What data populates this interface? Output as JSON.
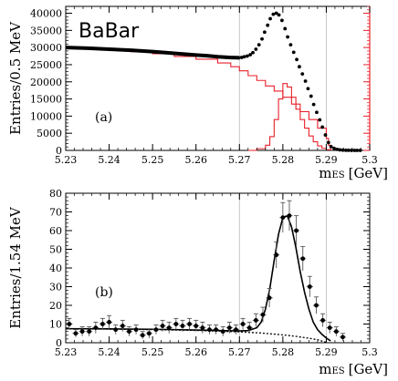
{
  "chart_data": [
    {
      "type": "scatter",
      "panel_label": "(a)",
      "experiment_label": "BaBar",
      "ylabel": "Entries/0.5 MeV",
      "xlabel": "m",
      "xlabel_subscript": "ES",
      "xlabel_unit": "[GeV]",
      "xlim": [
        5.23,
        5.3
      ],
      "ylim": [
        0,
        42000
      ],
      "xticks": [
        "5.23",
        "5.24",
        "5.25",
        "5.26",
        "5.27",
        "5.28",
        "5.29",
        "5.3"
      ],
      "yticks": [
        "0",
        "5000",
        "10000",
        "15000",
        "20000",
        "25000",
        "30000",
        "35000",
        "40000"
      ],
      "reference_lines_x": [
        5.27,
        5.29
      ],
      "colors": {
        "data": "#000000",
        "histograms": "#e8202a",
        "reference_lines": "#bbbbbb"
      },
      "series": [
        {
          "kind": "points",
          "x": [
            5.2698,
            5.2705,
            5.2711,
            5.2718,
            5.2725,
            5.2731,
            5.2738,
            5.2745,
            5.2752,
            5.2758,
            5.2765,
            5.2771,
            5.2778,
            5.2785,
            5.2791,
            5.2798,
            5.2805,
            5.2811,
            5.2818,
            5.2825,
            5.2832,
            5.2838,
            5.2845,
            5.2852,
            5.2858,
            5.2865,
            5.2871,
            5.2878,
            5.2885,
            5.2891,
            5.2898,
            5.2905,
            5.2911,
            5.2918,
            5.2925,
            5.2931,
            5.2938,
            5.2945,
            5.2951,
            5.2958,
            5.2965,
            5.2971,
            5.2978
          ],
          "y": [
            27000,
            27100,
            27300,
            27500,
            27900,
            28500,
            29500,
            30800,
            32500,
            34500,
            36500,
            38400,
            39700,
            40000,
            39500,
            37900,
            35500,
            33100,
            30800,
            28600,
            26500,
            24400,
            22300,
            20200,
            18000,
            15800,
            13400,
            11100,
            8900,
            6800,
            4500,
            2300,
            1100,
            600,
            300,
            150,
            80,
            40,
            20,
            10,
            5,
            2,
            0
          ]
        },
        {
          "kind": "band",
          "x": [
            5.23,
            5.235,
            5.24,
            5.245,
            5.25,
            5.255,
            5.26,
            5.2625,
            5.265,
            5.2675,
            5.27
          ],
          "y": [
            30000,
            29800,
            29500,
            29200,
            28800,
            28300,
            27800,
            27600,
            27300,
            27100,
            27000
          ]
        },
        {
          "kind": "step",
          "x": [
            5.23,
            5.235,
            5.24,
            5.245,
            5.25,
            5.255,
            5.26,
            5.265,
            5.268,
            5.27,
            5.272,
            5.274,
            5.276,
            5.278,
            5.28,
            5.282,
            5.284,
            5.286,
            5.288,
            5.29,
            5.2905,
            5.291
          ],
          "y": [
            29800,
            29600,
            29200,
            28800,
            28200,
            27400,
            26600,
            25500,
            24400,
            23200,
            21800,
            20400,
            18800,
            17300,
            15500,
            13500,
            11300,
            9000,
            6500,
            3500,
            1500,
            0
          ]
        },
        {
          "kind": "step",
          "x": [
            5.272,
            5.274,
            5.276,
            5.277,
            5.278,
            5.279,
            5.28,
            5.281,
            5.282,
            5.283,
            5.284,
            5.285,
            5.286,
            5.287,
            5.288,
            5.289,
            5.29,
            5.291
          ],
          "y": [
            0,
            500,
            1500,
            4000,
            9000,
            15000,
            19500,
            18500,
            15500,
            12000,
            9000,
            6500,
            4200,
            2500,
            1300,
            600,
            200,
            0
          ]
        }
      ]
    },
    {
      "type": "scatter",
      "panel_label": "(b)",
      "ylabel": "Entries/1.54 MeV",
      "xlabel": "m",
      "xlabel_subscript": "ES",
      "xlabel_unit": "[GeV]",
      "xlim": [
        5.23,
        5.3
      ],
      "ylim": [
        0,
        80
      ],
      "xticks": [
        "5.23",
        "5.24",
        "5.25",
        "5.26",
        "5.27",
        "5.28",
        "5.29",
        "5.3"
      ],
      "yticks": [
        "0",
        "10",
        "20",
        "30",
        "40",
        "50",
        "60",
        "70",
        "80"
      ],
      "reference_lines_x": [
        5.27,
        5.29
      ],
      "colors": {
        "data": "#000000",
        "errorbars": "#555555",
        "reference_lines": "#bbbbbb"
      },
      "points": {
        "x": [
          5.2308,
          5.2323,
          5.2338,
          5.2354,
          5.2369,
          5.2385,
          5.24,
          5.2415,
          5.2431,
          5.2446,
          5.2462,
          5.2477,
          5.2492,
          5.2508,
          5.2523,
          5.2538,
          5.2554,
          5.2569,
          5.2585,
          5.26,
          5.2615,
          5.2631,
          5.2646,
          5.2662,
          5.2677,
          5.2692,
          5.2708,
          5.2723,
          5.2738,
          5.2754,
          5.2769,
          5.2785,
          5.28,
          5.2815,
          5.2831,
          5.2846,
          5.2862,
          5.2877,
          5.2892,
          5.2908,
          5.2923,
          5.2938
        ],
        "y": [
          10,
          5,
          6,
          6,
          8,
          10,
          11,
          7,
          9,
          6,
          7,
          4,
          5,
          7,
          9,
          8,
          10,
          9,
          10,
          9,
          8,
          7,
          7,
          6,
          8,
          7,
          10,
          8,
          12,
          15,
          24,
          47,
          67,
          68,
          60,
          45,
          30,
          20,
          12,
          8,
          6,
          3
        ],
        "err": [
          3,
          2,
          2.5,
          2.5,
          3,
          3,
          3.5,
          2.5,
          3,
          2.5,
          2.5,
          2,
          2.5,
          2.5,
          3,
          3,
          3,
          3,
          3,
          3,
          3,
          2.5,
          2.5,
          2.5,
          3,
          2.5,
          3,
          3,
          3.5,
          4,
          5,
          7,
          8,
          8,
          8,
          6.5,
          5.5,
          4.5,
          3.5,
          3,
          2.5,
          2
        ]
      },
      "fit_total": {
        "x": [
          5.23,
          5.24,
          5.25,
          5.26,
          5.265,
          5.27,
          5.272,
          5.274,
          5.275,
          5.276,
          5.277,
          5.278,
          5.279,
          5.28,
          5.281,
          5.282,
          5.283,
          5.284,
          5.285,
          5.286,
          5.287,
          5.288,
          5.289,
          5.29,
          5.291
        ],
        "y": [
          7.5,
          7.4,
          7.2,
          6.8,
          6.5,
          6.3,
          6.5,
          8,
          11,
          18,
          29,
          44,
          58,
          67,
          68,
          62,
          51,
          38,
          27,
          18,
          11,
          7,
          4.5,
          2.5,
          1
        ]
      },
      "fit_background": {
        "x": [
          5.23,
          5.24,
          5.25,
          5.26,
          5.27,
          5.275,
          5.28,
          5.283,
          5.286,
          5.288,
          5.29
        ],
        "y": [
          7.5,
          7.3,
          7.0,
          6.6,
          5.8,
          5.2,
          4.2,
          3.4,
          2.4,
          1.6,
          0.2
        ]
      }
    }
  ]
}
